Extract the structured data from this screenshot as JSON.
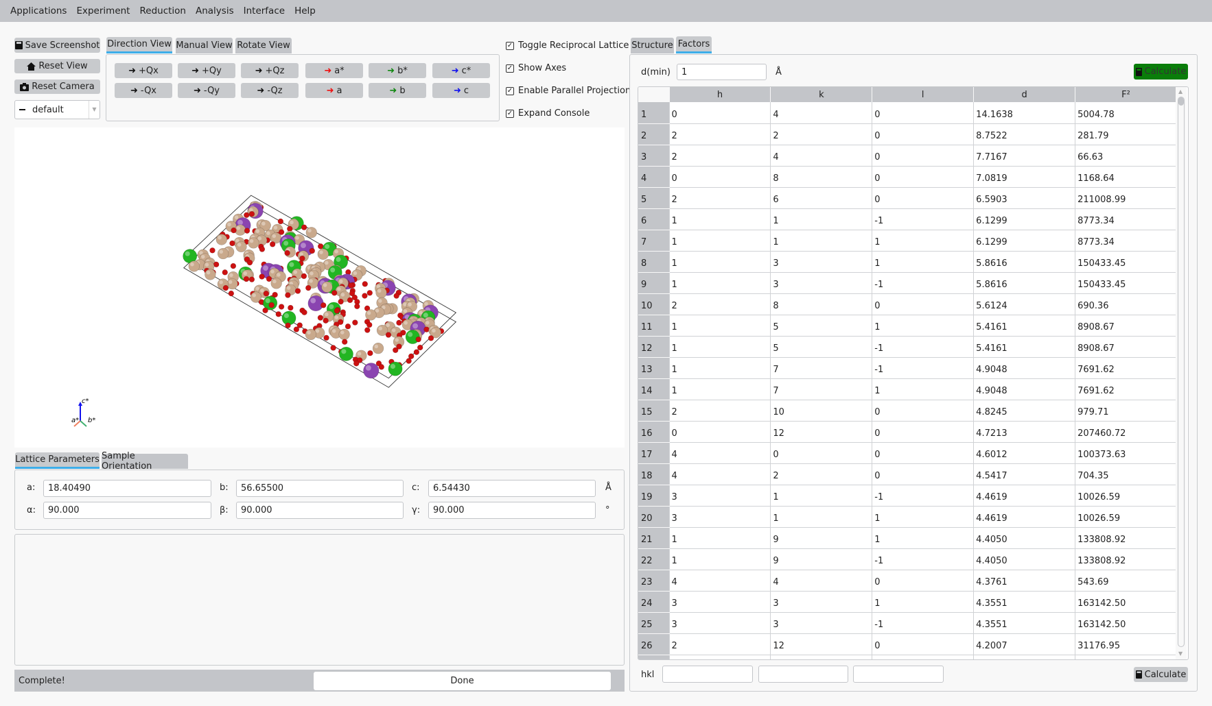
{
  "menu": [
    "Applications",
    "Experiment",
    "Reduction",
    "Analysis",
    "Interface",
    "Help"
  ],
  "left_buttons": {
    "save_screenshot": "Save Screenshot",
    "reset_view": "Reset View",
    "reset_camera": "Reset Camera",
    "colormap": "default"
  },
  "view_tabs": [
    "Direction View",
    "Manual View",
    "Rotate View"
  ],
  "direction_buttons": [
    {
      "label": "+Qx",
      "color": "#111111"
    },
    {
      "label": "+Qy",
      "color": "#111111"
    },
    {
      "label": "+Qz",
      "color": "#111111"
    },
    {
      "label": "a*",
      "color": "#ee1111"
    },
    {
      "label": "b*",
      "color": "#118811"
    },
    {
      "label": "c*",
      "color": "#1111ee"
    },
    {
      "label": "-Qx",
      "color": "#111111"
    },
    {
      "label": "-Qy",
      "color": "#111111"
    },
    {
      "label": "-Qz",
      "color": "#111111"
    },
    {
      "label": "a",
      "color": "#ee1111"
    },
    {
      "label": "b",
      "color": "#118811"
    },
    {
      "label": "c",
      "color": "#1111ee"
    }
  ],
  "checkboxes": [
    {
      "label": "Toggle Reciprocal Lattice",
      "checked": true
    },
    {
      "label": "Show Axes",
      "checked": true
    },
    {
      "label": "Enable Parallel Projection",
      "checked": true
    },
    {
      "label": "Expand Console",
      "checked": true
    }
  ],
  "axes_labels": {
    "a": "a*",
    "b": "b*",
    "c": "c*"
  },
  "atom_colors": {
    "purple": "#8a44b0",
    "green": "#22b522",
    "tan": "#c9a98c",
    "red": "#cc1111"
  },
  "lattice_tabs": [
    "Lattice Parameters",
    "Sample Orientation"
  ],
  "lattice": {
    "a_label": "a:",
    "a": "18.40490",
    "b_label": "b:",
    "b": "56.65500",
    "c_label": "c:",
    "c": "6.54430",
    "length_unit": "Å",
    "alpha_label": "α:",
    "alpha": "90.000",
    "beta_label": "β:",
    "beta": "90.000",
    "gamma_label": "γ:",
    "gamma": "90.000",
    "angle_unit": "°"
  },
  "status": {
    "text": "Complete!",
    "button": "Done"
  },
  "right_tabs": [
    "Structure",
    "Factors"
  ],
  "factors": {
    "dmin_label": "d(min)",
    "dmin": "1",
    "dmin_unit": "Å",
    "calculate": "Calculate",
    "hkl_label": "hkl",
    "hkl_calculate": "Calculate",
    "columns": [
      "h",
      "k",
      "l",
      "d",
      "F²"
    ],
    "rows": [
      [
        "0",
        "4",
        "0",
        "14.1638",
        "5004.78"
      ],
      [
        "2",
        "2",
        "0",
        "8.7522",
        "281.79"
      ],
      [
        "2",
        "4",
        "0",
        "7.7167",
        "66.63"
      ],
      [
        "0",
        "8",
        "0",
        "7.0819",
        "1168.64"
      ],
      [
        "2",
        "6",
        "0",
        "6.5903",
        "211008.99"
      ],
      [
        "1",
        "1",
        "-1",
        "6.1299",
        "8773.34"
      ],
      [
        "1",
        "1",
        "1",
        "6.1299",
        "8773.34"
      ],
      [
        "1",
        "3",
        "1",
        "5.8616",
        "150433.45"
      ],
      [
        "1",
        "3",
        "-1",
        "5.8616",
        "150433.45"
      ],
      [
        "2",
        "8",
        "0",
        "5.6124",
        "690.36"
      ],
      [
        "1",
        "5",
        "1",
        "5.4161",
        "8908.67"
      ],
      [
        "1",
        "5",
        "-1",
        "5.4161",
        "8908.67"
      ],
      [
        "1",
        "7",
        "-1",
        "4.9048",
        "7691.62"
      ],
      [
        "1",
        "7",
        "1",
        "4.9048",
        "7691.62"
      ],
      [
        "2",
        "10",
        "0",
        "4.8245",
        "979.71"
      ],
      [
        "0",
        "12",
        "0",
        "4.7213",
        "207460.72"
      ],
      [
        "4",
        "0",
        "0",
        "4.6012",
        "100373.63"
      ],
      [
        "4",
        "2",
        "0",
        "4.5417",
        "704.35"
      ],
      [
        "3",
        "1",
        "-1",
        "4.4619",
        "10026.59"
      ],
      [
        "3",
        "1",
        "1",
        "4.4619",
        "10026.59"
      ],
      [
        "1",
        "9",
        "1",
        "4.4050",
        "133808.92"
      ],
      [
        "1",
        "9",
        "-1",
        "4.4050",
        "133808.92"
      ],
      [
        "4",
        "4",
        "0",
        "4.3761",
        "543.69"
      ],
      [
        "3",
        "3",
        "1",
        "4.3551",
        "163142.50"
      ],
      [
        "3",
        "3",
        "-1",
        "4.3551",
        "163142.50"
      ],
      [
        "2",
        "12",
        "0",
        "4.2007",
        "31176.95"
      ]
    ]
  }
}
